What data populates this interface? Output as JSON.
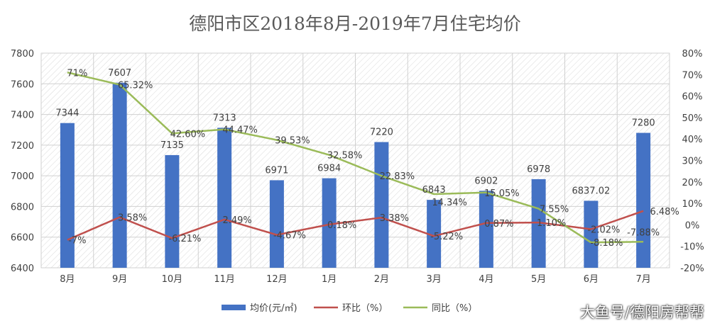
{
  "chart_data": {
    "type": "bar+line",
    "title": "德阳市区2018年8月-2019年7月住宅均价",
    "categories": [
      "8月",
      "9月",
      "10月",
      "11月",
      "12月",
      "1月",
      "2月",
      "3月",
      "4月",
      "5月",
      "6月",
      "7月"
    ],
    "y_left": {
      "range": [
        6400,
        7800
      ],
      "ticks": [
        6400,
        6600,
        6800,
        7000,
        7200,
        7400,
        7600,
        7800
      ]
    },
    "y_right": {
      "range": [
        -20,
        80
      ],
      "ticks": [
        "-20%",
        "-10%",
        "0%",
        "10%",
        "20%",
        "30%",
        "40%",
        "50%",
        "60%",
        "70%",
        "80%"
      ]
    },
    "grid": true,
    "legend_position": "bottom",
    "series": [
      {
        "name": "均价(元/㎡)",
        "type": "bar",
        "axis": "left",
        "color": "#4472c4",
        "values": [
          7344,
          7607,
          7135,
          7313,
          6971,
          6984,
          7220,
          6843,
          6902,
          6978,
          6837.02,
          7280
        ],
        "labels": [
          "7344",
          "7607",
          "7135",
          "7313",
          "6971",
          "6984",
          "7220",
          "6843",
          "6902",
          "6978",
          "6837.02",
          "7280"
        ]
      },
      {
        "name": "环比（%）",
        "type": "line",
        "axis": "right",
        "color": "#c0504d",
        "values": [
          -7,
          3.58,
          -6.21,
          2.49,
          -4.67,
          0.18,
          3.38,
          -5.22,
          0.87,
          1.1,
          -2.02,
          6.48
        ],
        "labels": [
          "-7%",
          "3.58%",
          "-6.21%",
          "2.49%",
          "-4.67%",
          "0.18%",
          "3.38%",
          "-5.22%",
          "0.87%",
          "1.10%",
          "-2.02%",
          "6.48%"
        ]
      },
      {
        "name": "同比（%）",
        "type": "line",
        "axis": "right",
        "color": "#9bbb59",
        "values": [
          71,
          65.32,
          42.6,
          44.47,
          39.53,
          32.58,
          22.83,
          14.34,
          15.05,
          7.55,
          -8.18,
          -7.88
        ],
        "labels": [
          "71%",
          "65.32%",
          "42.60%",
          "44.47%",
          "39.53%",
          "32.58%",
          "22.83%",
          "14.34%",
          "15.05%",
          "7.55%",
          "-8.18%",
          "-7.88%"
        ]
      }
    ]
  },
  "watermark": "大鱼号/德阳房帮帮"
}
